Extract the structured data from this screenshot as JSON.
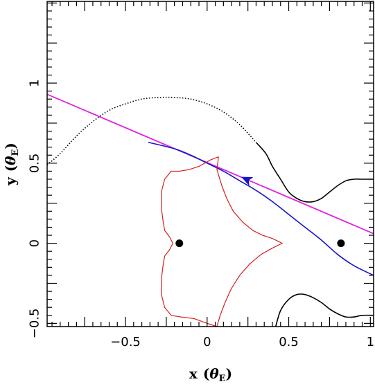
{
  "chart_data": {
    "type": "line",
    "title": "",
    "xlabel": "x (θE)",
    "ylabel": "y (θE)",
    "xlabel_main": "x",
    "xlabel_unit": "θ",
    "xlabel_sub": "E",
    "ylabel_main": "y",
    "ylabel_unit": "θ",
    "ylabel_sub": "E",
    "xlim": [
      -0.98,
      1.02
    ],
    "ylim": [
      -0.52,
      1.51
    ],
    "x_ticks": [
      -0.5,
      0,
      0.5,
      1
    ],
    "x_tick_labels": [
      "−0.5",
      "0",
      "0.5",
      "1"
    ],
    "y_ticks": [
      -0.5,
      0,
      0.5,
      1
    ],
    "y_tick_labels": [
      "−0.5",
      "0",
      "0.5",
      "1"
    ],
    "grid": false,
    "series": [
      {
        "kind": "straight_line",
        "color": "#e020e0",
        "x": [
          -0.98,
          1.02
        ],
        "y": [
          0.93,
          0.06
        ]
      },
      {
        "kind": "trajectory",
        "color": "#1515cc",
        "arrow_direction": "left",
        "x": [
          -0.36,
          -0.2,
          -0.1,
          0.0,
          0.1,
          0.2,
          0.3,
          0.4,
          0.5,
          0.6,
          0.7,
          0.8,
          0.9,
          1.02
        ],
        "y": [
          0.63,
          0.59,
          0.55,
          0.5,
          0.45,
          0.39,
          0.33,
          0.26,
          0.18,
          0.1,
          0.02,
          -0.07,
          -0.14,
          -0.2
        ]
      },
      {
        "kind": "caustic",
        "color": "#d42020",
        "x": [
          0.07,
          0.06,
          0.09,
          0.12,
          0.16,
          0.22,
          0.28,
          0.34,
          0.4,
          0.46,
          0.4,
          0.33,
          0.26,
          0.2,
          0.15,
          0.11,
          0.08,
          0.06,
          0.0,
          -0.08,
          -0.16,
          -0.22,
          -0.26,
          -0.28,
          -0.28,
          -0.27,
          -0.26,
          -0.23,
          -0.21,
          -0.23,
          -0.26,
          -0.27,
          -0.28,
          -0.28,
          -0.26,
          -0.22,
          -0.17,
          -0.11,
          -0.05,
          0.02,
          0.07
        ],
        "y": [
          0.54,
          0.46,
          0.36,
          0.28,
          0.2,
          0.13,
          0.08,
          0.05,
          0.03,
          0.0,
          -0.03,
          -0.07,
          -0.13,
          -0.2,
          -0.28,
          -0.37,
          -0.45,
          -0.52,
          -0.5,
          -0.47,
          -0.46,
          -0.45,
          -0.4,
          -0.32,
          -0.22,
          -0.14,
          -0.08,
          -0.04,
          0.0,
          0.04,
          0.08,
          0.14,
          0.22,
          0.32,
          0.4,
          0.45,
          0.45,
          0.46,
          0.48,
          0.52,
          0.54
        ]
      },
      {
        "kind": "critical_curve_dotted",
        "color": "#000000",
        "x": [
          -0.98,
          -0.9,
          -0.8,
          -0.7,
          -0.6,
          -0.5,
          -0.4,
          -0.3,
          -0.2,
          -0.1,
          0.0,
          0.1,
          0.2,
          0.3
        ],
        "y": [
          0.49,
          0.56,
          0.67,
          0.76,
          0.83,
          0.87,
          0.9,
          0.91,
          0.91,
          0.9,
          0.87,
          0.82,
          0.74,
          0.63
        ]
      },
      {
        "kind": "critical_curve_solid",
        "color": "#000000",
        "x": [
          0.3,
          0.36,
          0.4,
          0.45,
          0.5,
          0.55,
          0.6,
          0.65,
          0.7,
          0.75,
          0.8,
          0.85,
          0.9,
          0.95,
          1.02
        ],
        "y": [
          0.63,
          0.56,
          0.48,
          0.4,
          0.32,
          0.28,
          0.26,
          0.26,
          0.28,
          0.32,
          0.36,
          0.39,
          0.4,
          0.4,
          0.4
        ]
      },
      {
        "kind": "critical_curve_lower",
        "color": "#000000",
        "x": [
          0.42,
          0.45,
          0.5,
          0.55,
          0.6,
          0.65,
          0.7,
          0.75,
          0.8,
          0.85,
          0.9,
          0.95,
          1.02
        ],
        "y": [
          -0.52,
          -0.42,
          -0.35,
          -0.32,
          -0.32,
          -0.34,
          -0.37,
          -0.41,
          -0.44,
          -0.46,
          -0.46,
          -0.45,
          -0.45
        ]
      }
    ],
    "points": [
      {
        "name": "lens-1",
        "x": -0.17,
        "y": 0.0,
        "color": "#000000"
      },
      {
        "name": "lens-2",
        "x": 0.82,
        "y": 0.0,
        "color": "#000000"
      }
    ]
  }
}
